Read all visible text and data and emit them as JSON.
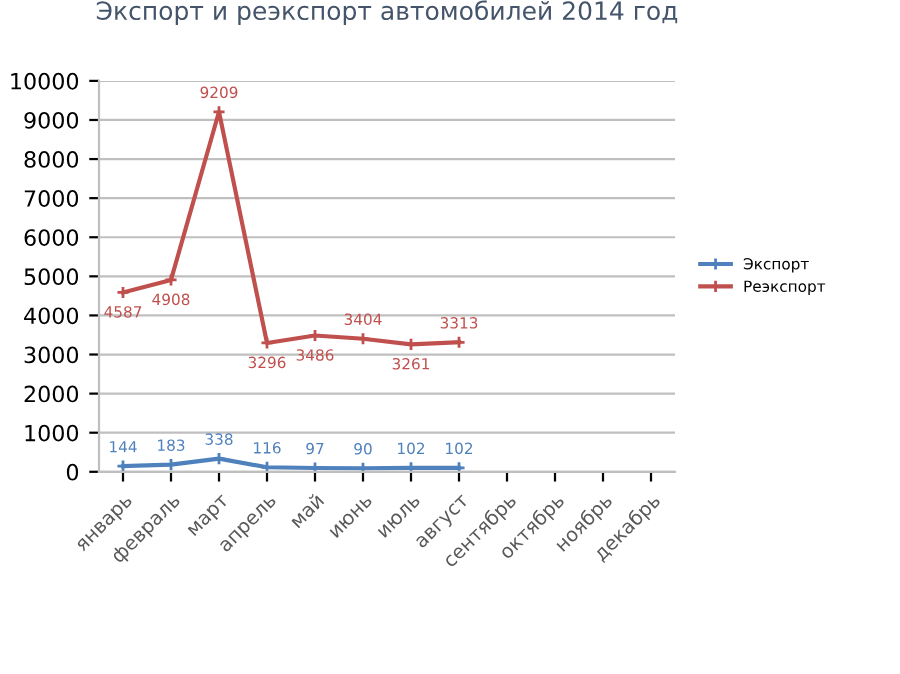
{
  "chart_data": {
    "type": "line",
    "title": "Экспорт и реэкспорт автомобилей 2014 год",
    "categories": [
      "январь",
      "февраль",
      "март",
      "апрель",
      "май",
      "июнь",
      "июль",
      "август",
      "сентябрь",
      "октябрь",
      "ноябрь",
      "декабрь"
    ],
    "series": [
      {
        "name": "Экспорт",
        "color": "#4f81bd",
        "values": [
          144,
          183,
          338,
          116,
          97,
          90,
          102,
          102,
          null,
          null,
          null,
          null
        ]
      },
      {
        "name": "Реэкспорт",
        "color": "#c0504d",
        "values": [
          4587,
          4908,
          9209,
          3296,
          3486,
          3404,
          3261,
          3313,
          null,
          null,
          null,
          null
        ]
      }
    ],
    "ylim": [
      0,
      10000
    ],
    "yticks": [
      0,
      1000,
      2000,
      3000,
      4000,
      5000,
      6000,
      7000,
      8000,
      9000,
      10000
    ],
    "grid": "y",
    "legend": "right",
    "marker": "cross",
    "line_style": "solid",
    "data_labels": true
  }
}
